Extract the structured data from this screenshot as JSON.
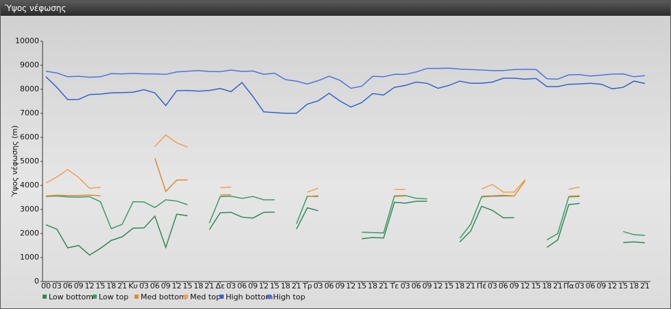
{
  "chart_data": {
    "type": "line",
    "title": "Ύψος νέφωσης",
    "y_label": "Ύψος νέφωσης (m)",
    "categories": [
      "00",
      "03",
      "06",
      "09",
      "12",
      "15",
      "18",
      "21",
      "Κυ",
      "03",
      "06",
      "09",
      "12",
      "15",
      "18",
      "21",
      "Δε",
      "03",
      "06",
      "09",
      "12",
      "15",
      "18",
      "21",
      "Τρ",
      "03",
      "06",
      "09",
      "12",
      "15",
      "18",
      "21",
      "Τε",
      "03",
      "06",
      "09",
      "12",
      "15",
      "18",
      "21",
      "Πέ",
      "03",
      "06",
      "09",
      "12",
      "15",
      "18",
      "21",
      "Πα",
      "03",
      "06",
      "09",
      "12",
      "15",
      "18",
      "21"
    ],
    "ylim": [
      0,
      10000
    ],
    "yticks": [
      0,
      1000,
      2000,
      3000,
      4000,
      5000,
      6000,
      7000,
      8000,
      9000,
      10000
    ],
    "grid": false,
    "series": [
      {
        "name": "Low bottom",
        "color": "#2e8a55",
        "values": [
          2360,
          2180,
          1400,
          1500,
          1100,
          1380,
          1710,
          1860,
          2220,
          2230,
          2720,
          1420,
          2800,
          2740,
          null,
          2160,
          2860,
          2880,
          2680,
          2640,
          2880,
          2890,
          null,
          2180,
          3070,
          2950,
          null,
          null,
          null,
          1780,
          1830,
          1810,
          3300,
          3260,
          3340,
          3340,
          null,
          null,
          1650,
          2100,
          3130,
          2960,
          2650,
          2660,
          null,
          null,
          1420,
          1730,
          3200,
          3250,
          null,
          null,
          null,
          1620,
          1650,
          1610
        ]
      },
      {
        "name": "Low top",
        "color": "#3c9a66",
        "values": [
          3540,
          3560,
          3520,
          3510,
          3530,
          3320,
          2200,
          2380,
          3320,
          3310,
          3080,
          3400,
          3350,
          3200,
          null,
          2430,
          3530,
          3550,
          3460,
          3540,
          3400,
          3400,
          null,
          2400,
          3550,
          3540,
          null,
          null,
          null,
          2050,
          2040,
          2020,
          3560,
          3580,
          3460,
          3440,
          null,
          null,
          1800,
          2380,
          3520,
          3550,
          3560,
          3560,
          null,
          null,
          1730,
          2000,
          3520,
          3540,
          null,
          null,
          null,
          2080,
          1950,
          1920
        ]
      },
      {
        "name": "Med bottom",
        "color": "#e08a2c",
        "values": [
          3560,
          3590,
          3580,
          3580,
          3600,
          3570,
          null,
          null,
          null,
          null,
          5130,
          3750,
          4220,
          4230,
          null,
          null,
          3600,
          3610,
          null,
          null,
          null,
          null,
          null,
          null,
          3540,
          3570,
          null,
          null,
          null,
          null,
          null,
          null,
          3540,
          3560,
          null,
          null,
          null,
          null,
          null,
          null,
          3550,
          3570,
          3590,
          3560,
          4200,
          null,
          null,
          null,
          3550,
          3570,
          null,
          null,
          null,
          null,
          null,
          null
        ]
      },
      {
        "name": "Med top",
        "color": "#f0a050",
        "values": [
          4100,
          4350,
          4660,
          4330,
          3880,
          3920,
          null,
          null,
          null,
          null,
          5620,
          6100,
          5770,
          5600,
          null,
          null,
          3900,
          3930,
          null,
          null,
          null,
          null,
          null,
          null,
          3720,
          3880,
          null,
          null,
          null,
          null,
          null,
          null,
          3830,
          3830,
          null,
          null,
          null,
          null,
          null,
          null,
          3850,
          4040,
          3720,
          3720,
          4240,
          null,
          null,
          null,
          3840,
          3930,
          null,
          null,
          null,
          null,
          null,
          null
        ]
      },
      {
        "name": "High bottom",
        "color": "#3460d0",
        "values": [
          8520,
          8080,
          7570,
          7580,
          7780,
          7800,
          7850,
          7860,
          7880,
          7980,
          7850,
          7320,
          7940,
          7950,
          7920,
          7950,
          8030,
          7900,
          8280,
          7700,
          7060,
          7030,
          7000,
          7000,
          7380,
          7520,
          7830,
          7510,
          7260,
          7450,
          7820,
          7760,
          8080,
          8160,
          8300,
          8250,
          8040,
          8160,
          8340,
          8250,
          8250,
          8300,
          8460,
          8460,
          8420,
          8450,
          8110,
          8110,
          8210,
          8220,
          8250,
          8210,
          8020,
          8080,
          8340,
          8240
        ]
      },
      {
        "name": "High top",
        "color": "#4a74e0",
        "values": [
          8750,
          8680,
          8520,
          8540,
          8500,
          8520,
          8650,
          8640,
          8660,
          8640,
          8640,
          8620,
          8720,
          8750,
          8780,
          8740,
          8730,
          8800,
          8740,
          8760,
          8620,
          8670,
          8400,
          8340,
          8220,
          8360,
          8540,
          8370,
          8040,
          8130,
          8540,
          8520,
          8620,
          8620,
          8720,
          8870,
          8870,
          8880,
          8840,
          8820,
          8800,
          8780,
          8780,
          8820,
          8830,
          8820,
          8440,
          8420,
          8600,
          8610,
          8550,
          8590,
          8630,
          8640,
          8520,
          8570
        ]
      }
    ]
  }
}
